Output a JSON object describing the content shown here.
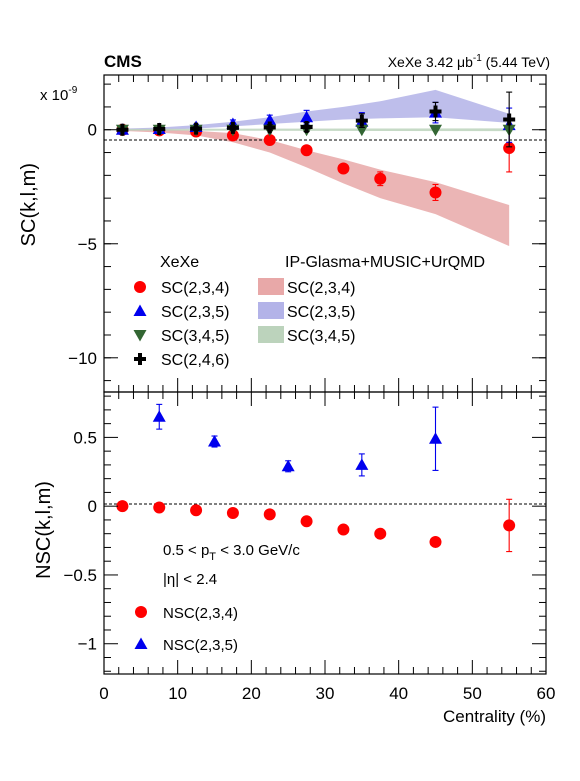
{
  "header": {
    "experiment": "CMS",
    "lumi_prefix": "XeXe 3.42 ",
    "lumi_unit": "μb",
    "lumi_exp": "-1",
    "lumi_suffix": " (5.44 TeV)"
  },
  "colors": {
    "red": "#ff0000",
    "blue": "#0000ee",
    "green": "#336633",
    "black": "#000000",
    "band_red": "#e8a8a8",
    "band_blue": "#b3b3e8",
    "band_green": "#bcd3bc"
  },
  "chart_data": [
    {
      "type": "scatter",
      "panel": "top",
      "ylabel": "SC(k,l,m)",
      "y_multiplier": "x 10",
      "y_multiplier_exp": "-9",
      "xlim": [
        0,
        60
      ],
      "ylim": [
        -11.5,
        2.4
      ],
      "y_ticks": [
        0,
        -5,
        -10
      ],
      "y_tick_labels": [
        "0",
        "−5",
        "−10"
      ],
      "legend_data_title": "XeXe",
      "legend_model_title": "IP-Glasma+MUSIC+UrQMD",
      "series": [
        {
          "name": "SC(2,3,4)",
          "marker": "circle",
          "color": "red",
          "x": [
            2.5,
            7.5,
            12.5,
            17.5,
            22.5,
            27.5,
            32.5,
            37.5,
            45,
            55
          ],
          "y": [
            0.0,
            -0.03,
            -0.08,
            -0.25,
            -0.45,
            -0.9,
            -1.7,
            -2.15,
            -2.75,
            -0.8
          ],
          "err": [
            0.03,
            0.04,
            0.06,
            0.08,
            0.1,
            0.12,
            0.15,
            0.3,
            0.35,
            1.05
          ]
        },
        {
          "name": "SC(2,3,5)",
          "marker": "triangle",
          "color": "blue",
          "x": [
            2.5,
            7.5,
            12.5,
            17.5,
            22.5,
            27.5,
            35,
            45,
            55
          ],
          "y": [
            0.0,
            0.03,
            0.12,
            0.25,
            0.42,
            0.55,
            0.35,
            0.75,
            0.2
          ],
          "err": [
            0.05,
            0.08,
            0.12,
            0.18,
            0.22,
            0.3,
            0.4,
            0.45,
            0.75
          ]
        },
        {
          "name": "SC(3,4,5)",
          "marker": "triangle-down",
          "color": "green",
          "x": [
            2.5,
            7.5,
            12.5,
            17.5,
            22.5,
            27.5,
            35,
            45,
            55
          ],
          "y": [
            0.0,
            0.0,
            0.0,
            0.0,
            0.0,
            0.0,
            0.0,
            0.0,
            0.0
          ],
          "err": [
            0.03,
            0.03,
            0.03,
            0.03,
            0.03,
            0.03,
            0.03,
            0.03,
            0.05
          ]
        },
        {
          "name": "SC(2,4,6)",
          "marker": "cross",
          "color": "black",
          "x": [
            2.5,
            7.5,
            12.5,
            17.5,
            22.5,
            27.5,
            35,
            45,
            55
          ],
          "y": [
            0.0,
            0.03,
            0.05,
            0.08,
            0.1,
            0.12,
            0.4,
            0.8,
            0.45
          ],
          "err": [
            0.05,
            0.06,
            0.08,
            0.1,
            0.12,
            0.2,
            0.3,
            0.4,
            1.2
          ]
        }
      ],
      "bands": [
        {
          "name": "SC(2,3,4)",
          "color": "band_red",
          "x": [
            2.5,
            7.5,
            12.5,
            17.5,
            22.5,
            27.5,
            32.5,
            37.5,
            45,
            55
          ],
          "lo": [
            -0.05,
            -0.12,
            -0.25,
            -0.55,
            -1.0,
            -1.65,
            -2.35,
            -3.0,
            -3.7,
            -5.1
          ],
          "hi": [
            0.05,
            0.02,
            -0.05,
            -0.15,
            -0.45,
            -0.9,
            -1.3,
            -1.75,
            -2.3,
            -3.3
          ]
        },
        {
          "name": "SC(2,3,5)",
          "color": "band_blue",
          "x": [
            2.5,
            7.5,
            12.5,
            17.5,
            22.5,
            27.5,
            32.5,
            37.5,
            45,
            55
          ],
          "lo": [
            -0.03,
            0.0,
            0.05,
            0.15,
            0.25,
            0.35,
            0.45,
            0.5,
            0.55,
            0.3
          ],
          "hi": [
            0.05,
            0.1,
            0.2,
            0.35,
            0.55,
            0.8,
            1.0,
            1.25,
            1.75,
            0.7
          ]
        },
        {
          "name": "SC(3,4,5)",
          "color": "band_green",
          "x": [
            2.5,
            55
          ],
          "lo": [
            -0.04,
            -0.06
          ],
          "hi": [
            0.04,
            0.06
          ]
        }
      ]
    },
    {
      "type": "scatter",
      "panel": "bottom",
      "xlabel": "Centrality (%)",
      "ylabel": "NSC(k,l,m)",
      "xlim": [
        0,
        60
      ],
      "ylim": [
        -1.22,
        0.83
      ],
      "x_ticks": [
        0,
        10,
        20,
        30,
        40,
        50,
        60
      ],
      "x_tick_labels": [
        "0",
        "10",
        "20",
        "30",
        "40",
        "50",
        "60"
      ],
      "y_ticks": [
        0.5,
        0,
        -0.5,
        -1
      ],
      "y_tick_labels": [
        "0.5",
        "0",
        "−0.5",
        "−1"
      ],
      "annotations": {
        "pt_cut": "0.5 < p",
        "pt_sub": "T",
        "pt_rest": " < 3.0 GeV/c",
        "eta_cut": "|η| < 2.4"
      },
      "series": [
        {
          "name": "NSC(2,3,4)",
          "marker": "circle",
          "color": "red",
          "x": [
            2.5,
            7.5,
            12.5,
            17.5,
            22.5,
            27.5,
            32.5,
            37.5,
            45,
            55
          ],
          "y": [
            0.0,
            -0.01,
            -0.03,
            -0.05,
            -0.06,
            -0.11,
            -0.17,
            -0.2,
            -0.26,
            -0.14
          ],
          "err": [
            0.01,
            0.01,
            0.01,
            0.01,
            0.01,
            0.02,
            0.02,
            0.02,
            0.03,
            0.19
          ]
        },
        {
          "name": "NSC(2,3,5)",
          "marker": "triangle",
          "color": "blue",
          "x": [
            7.5,
            15,
            25,
            35,
            45
          ],
          "y": [
            0.65,
            0.47,
            0.29,
            0.3,
            0.49
          ],
          "err": [
            0.09,
            0.04,
            0.04,
            0.08,
            0.23
          ]
        }
      ]
    }
  ]
}
